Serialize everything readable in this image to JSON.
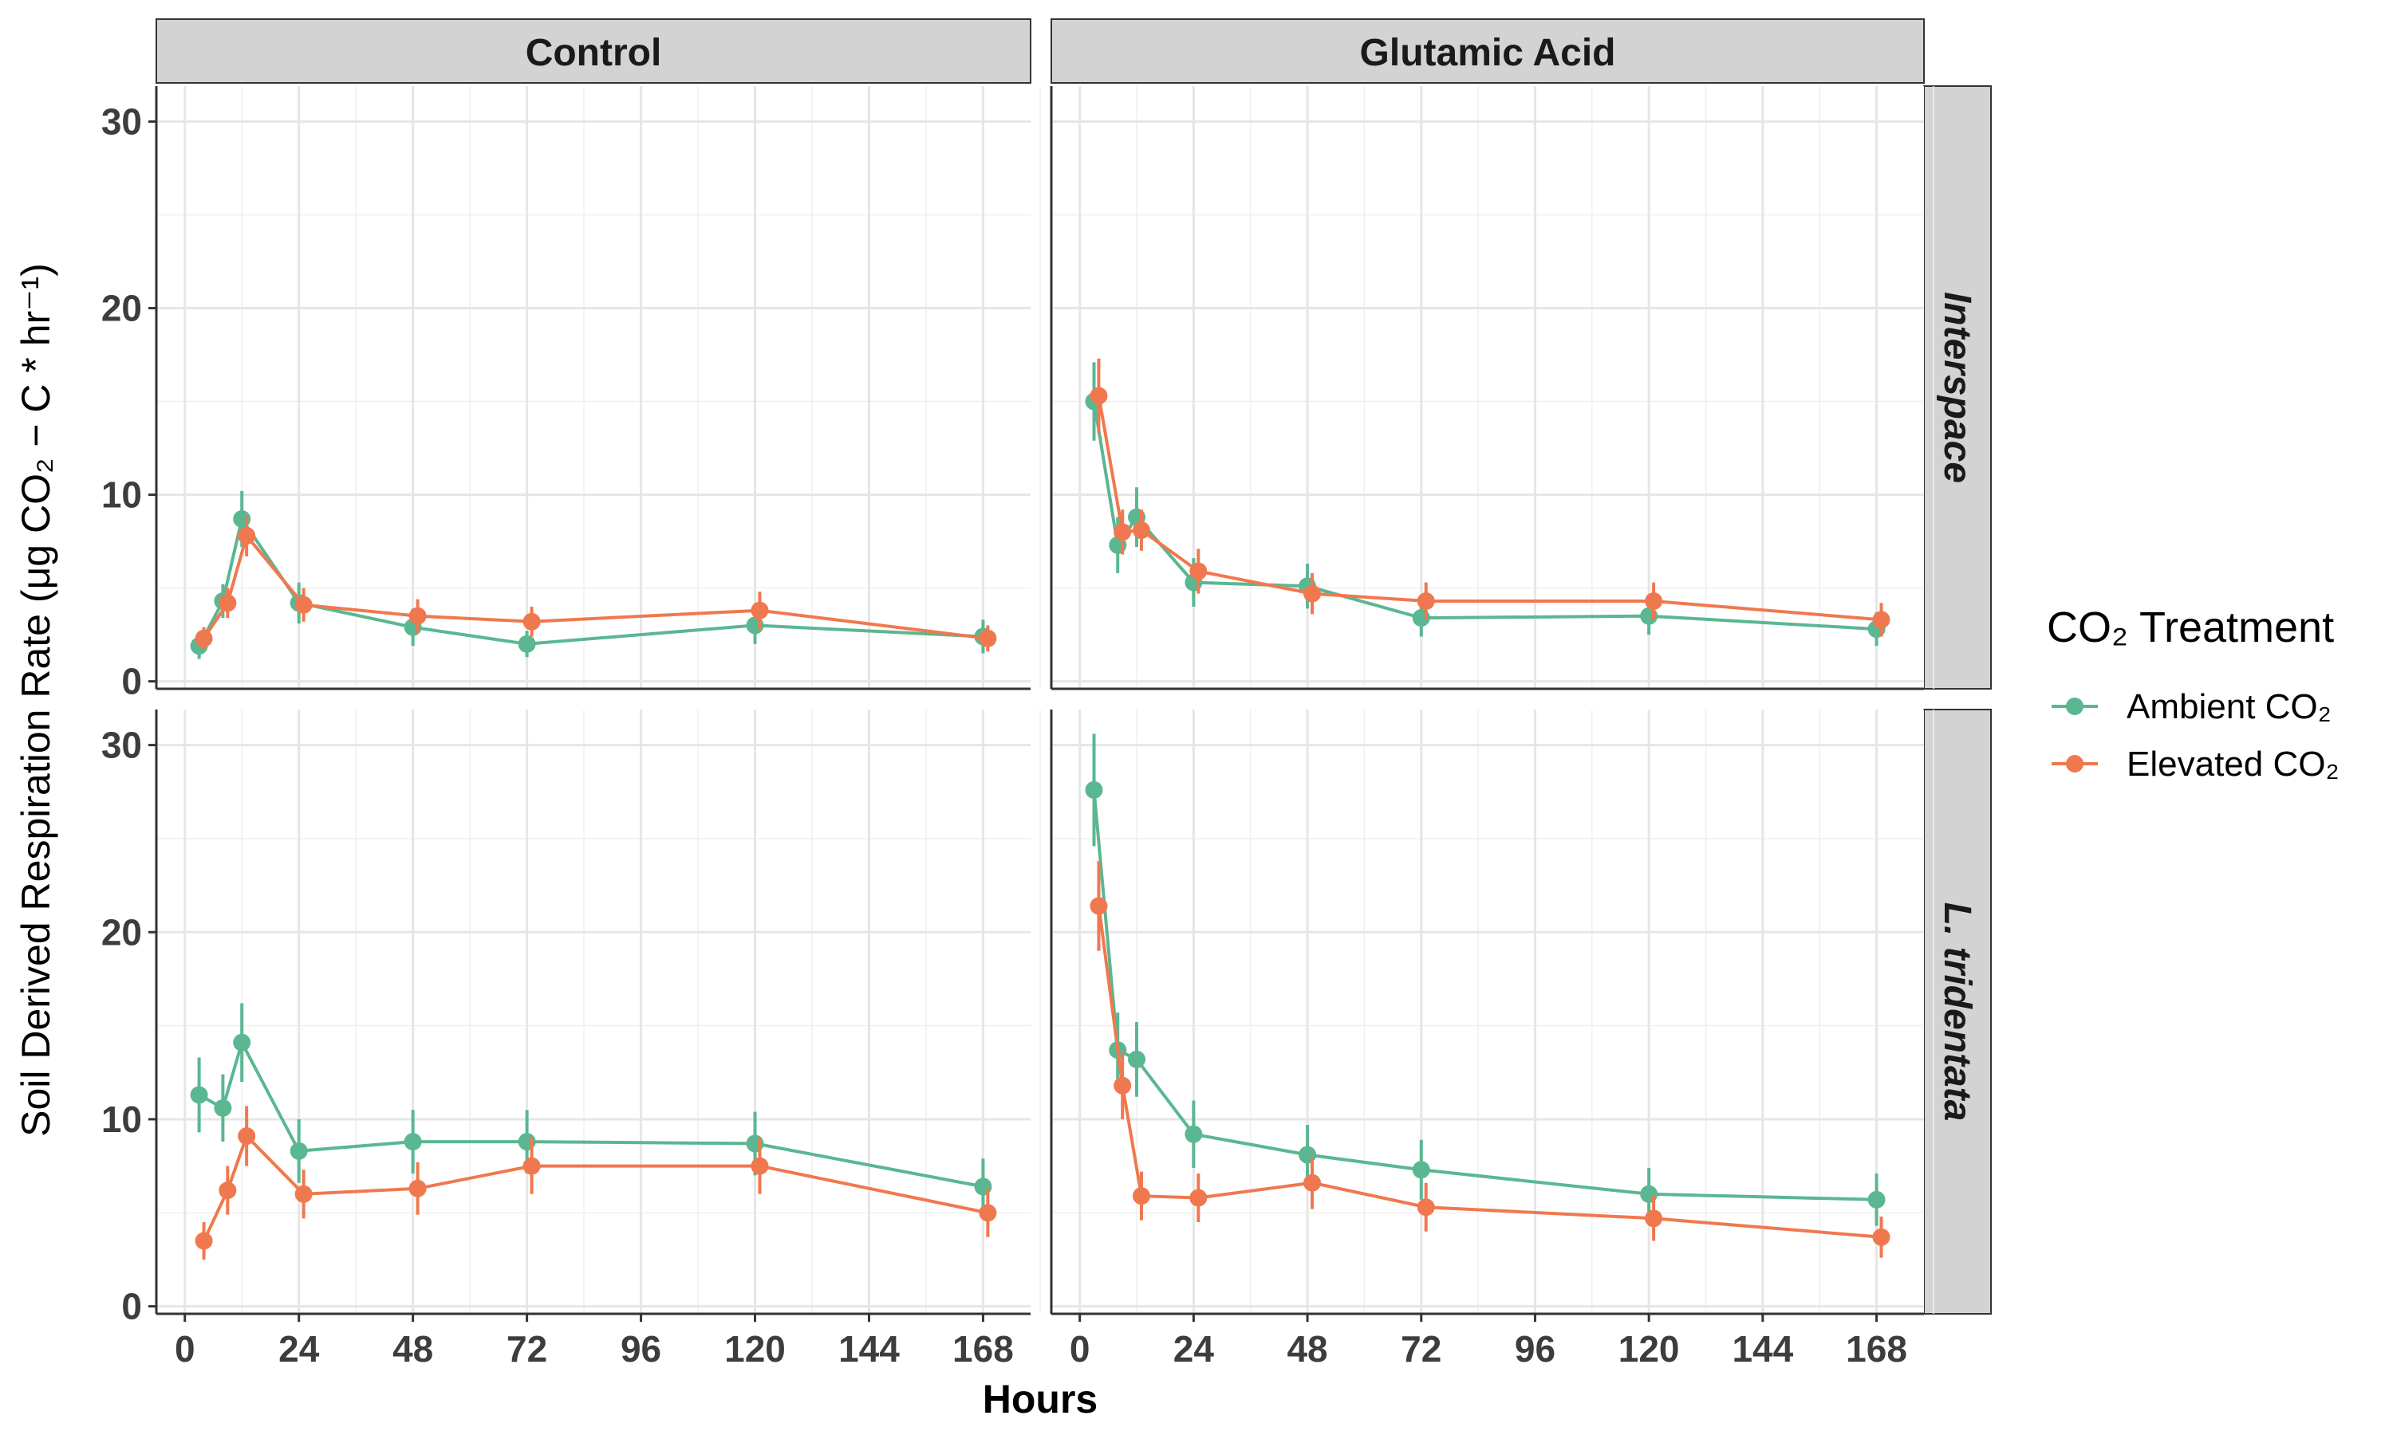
{
  "chart_data": {
    "type": "line",
    "facets": {
      "columns": [
        "Control",
        "Glutamic Acid"
      ],
      "rows": [
        "Interspace",
        "L. tridentata"
      ]
    },
    "x_label": "Hours",
    "y_label": "Soil Derived Respiration Rate (μg CO₂ − C * hr⁻¹)",
    "x_ticks": [
      0,
      24,
      48,
      72,
      96,
      120,
      144,
      168
    ],
    "y_ticks": [
      0,
      10,
      20,
      30
    ],
    "x_range": [
      -6,
      178
    ],
    "y_range": [
      0,
      30
    ],
    "legend": {
      "title": "CO₂ Treatment",
      "position": "right",
      "items": [
        "Ambient CO₂",
        "Elevated CO₂"
      ]
    },
    "colors": {
      "Ambient": "#5ab791",
      "Elevated": "#f0784f"
    },
    "grid": true,
    "panels": [
      {
        "column": "Control",
        "row": "Interspace",
        "series": [
          {
            "name": "Ambient CO₂",
            "points": [
              {
                "x": 3,
                "y": 1.9,
                "err": 0.7
              },
              {
                "x": 8,
                "y": 4.3,
                "err": 0.9
              },
              {
                "x": 12,
                "y": 8.7,
                "err": 1.5
              },
              {
                "x": 24,
                "y": 4.2,
                "err": 1.1
              },
              {
                "x": 48,
                "y": 2.9,
                "err": 1.0
              },
              {
                "x": 72,
                "y": 2.0,
                "err": 0.7
              },
              {
                "x": 120,
                "y": 3.0,
                "err": 1.0
              },
              {
                "x": 168,
                "y": 2.4,
                "err": 0.9
              }
            ]
          },
          {
            "name": "Elevated CO₂",
            "points": [
              {
                "x": 4,
                "y": 2.3,
                "err": 0.6
              },
              {
                "x": 9,
                "y": 4.2,
                "err": 0.8
              },
              {
                "x": 13,
                "y": 7.8,
                "err": 1.1
              },
              {
                "x": 25,
                "y": 4.1,
                "err": 0.9
              },
              {
                "x": 49,
                "y": 3.5,
                "err": 0.9
              },
              {
                "x": 73,
                "y": 3.2,
                "err": 0.8
              },
              {
                "x": 121,
                "y": 3.8,
                "err": 1.0
              },
              {
                "x": 169,
                "y": 2.3,
                "err": 0.7
              }
            ]
          }
        ]
      },
      {
        "column": "Glutamic Acid",
        "row": "Interspace",
        "series": [
          {
            "name": "Ambient CO₂",
            "points": [
              {
                "x": 3,
                "y": 15.0,
                "err": 2.1
              },
              {
                "x": 8,
                "y": 7.3,
                "err": 1.5
              },
              {
                "x": 12,
                "y": 8.8,
                "err": 1.6
              },
              {
                "x": 24,
                "y": 5.3,
                "err": 1.3
              },
              {
                "x": 48,
                "y": 5.1,
                "err": 1.2
              },
              {
                "x": 72,
                "y": 3.4,
                "err": 1.0
              },
              {
                "x": 120,
                "y": 3.5,
                "err": 1.0
              },
              {
                "x": 168,
                "y": 2.8,
                "err": 0.9
              }
            ]
          },
          {
            "name": "Elevated CO₂",
            "points": [
              {
                "x": 4,
                "y": 15.3,
                "err": 2.0
              },
              {
                "x": 9,
                "y": 8.0,
                "err": 1.2
              },
              {
                "x": 13,
                "y": 8.1,
                "err": 1.1
              },
              {
                "x": 25,
                "y": 5.9,
                "err": 1.2
              },
              {
                "x": 49,
                "y": 4.7,
                "err": 1.1
              },
              {
                "x": 73,
                "y": 4.3,
                "err": 1.0
              },
              {
                "x": 121,
                "y": 4.3,
                "err": 1.0
              },
              {
                "x": 169,
                "y": 3.3,
                "err": 0.9
              }
            ]
          }
        ]
      },
      {
        "column": "Control",
        "row": "L. tridentata",
        "series": [
          {
            "name": "Ambient CO₂",
            "points": [
              {
                "x": 3,
                "y": 11.3,
                "err": 2.0
              },
              {
                "x": 8,
                "y": 10.6,
                "err": 1.8
              },
              {
                "x": 12,
                "y": 14.1,
                "err": 2.1
              },
              {
                "x": 24,
                "y": 8.3,
                "err": 1.7
              },
              {
                "x": 48,
                "y": 8.8,
                "err": 1.7
              },
              {
                "x": 72,
                "y": 8.8,
                "err": 1.7
              },
              {
                "x": 120,
                "y": 8.7,
                "err": 1.7
              },
              {
                "x": 168,
                "y": 6.4,
                "err": 1.5
              }
            ]
          },
          {
            "name": "Elevated CO₂",
            "points": [
              {
                "x": 4,
                "y": 3.5,
                "err": 1.0
              },
              {
                "x": 9,
                "y": 6.2,
                "err": 1.3
              },
              {
                "x": 13,
                "y": 9.1,
                "err": 1.6
              },
              {
                "x": 25,
                "y": 6.0,
                "err": 1.3
              },
              {
                "x": 49,
                "y": 6.3,
                "err": 1.4
              },
              {
                "x": 73,
                "y": 7.5,
                "err": 1.5
              },
              {
                "x": 121,
                "y": 7.5,
                "err": 1.5
              },
              {
                "x": 169,
                "y": 5.0,
                "err": 1.3
              }
            ]
          }
        ]
      },
      {
        "column": "Glutamic Acid",
        "row": "L. tridentata",
        "series": [
          {
            "name": "Ambient CO₂",
            "points": [
              {
                "x": 3,
                "y": 27.6,
                "err": 3.0
              },
              {
                "x": 8,
                "y": 13.7,
                "err": 2.0
              },
              {
                "x": 12,
                "y": 13.2,
                "err": 2.0
              },
              {
                "x": 24,
                "y": 9.2,
                "err": 1.8
              },
              {
                "x": 48,
                "y": 8.1,
                "err": 1.6
              },
              {
                "x": 72,
                "y": 7.3,
                "err": 1.6
              },
              {
                "x": 120,
                "y": 6.0,
                "err": 1.4
              },
              {
                "x": 168,
                "y": 5.7,
                "err": 1.4
              }
            ]
          },
          {
            "name": "Elevated CO₂",
            "points": [
              {
                "x": 4,
                "y": 21.4,
                "err": 2.4
              },
              {
                "x": 9,
                "y": 11.8,
                "err": 1.8
              },
              {
                "x": 13,
                "y": 5.9,
                "err": 1.3
              },
              {
                "x": 25,
                "y": 5.8,
                "err": 1.3
              },
              {
                "x": 49,
                "y": 6.6,
                "err": 1.4
              },
              {
                "x": 73,
                "y": 5.3,
                "err": 1.3
              },
              {
                "x": 121,
                "y": 4.7,
                "err": 1.2
              },
              {
                "x": 169,
                "y": 3.7,
                "err": 1.1
              }
            ]
          }
        ]
      }
    ]
  }
}
